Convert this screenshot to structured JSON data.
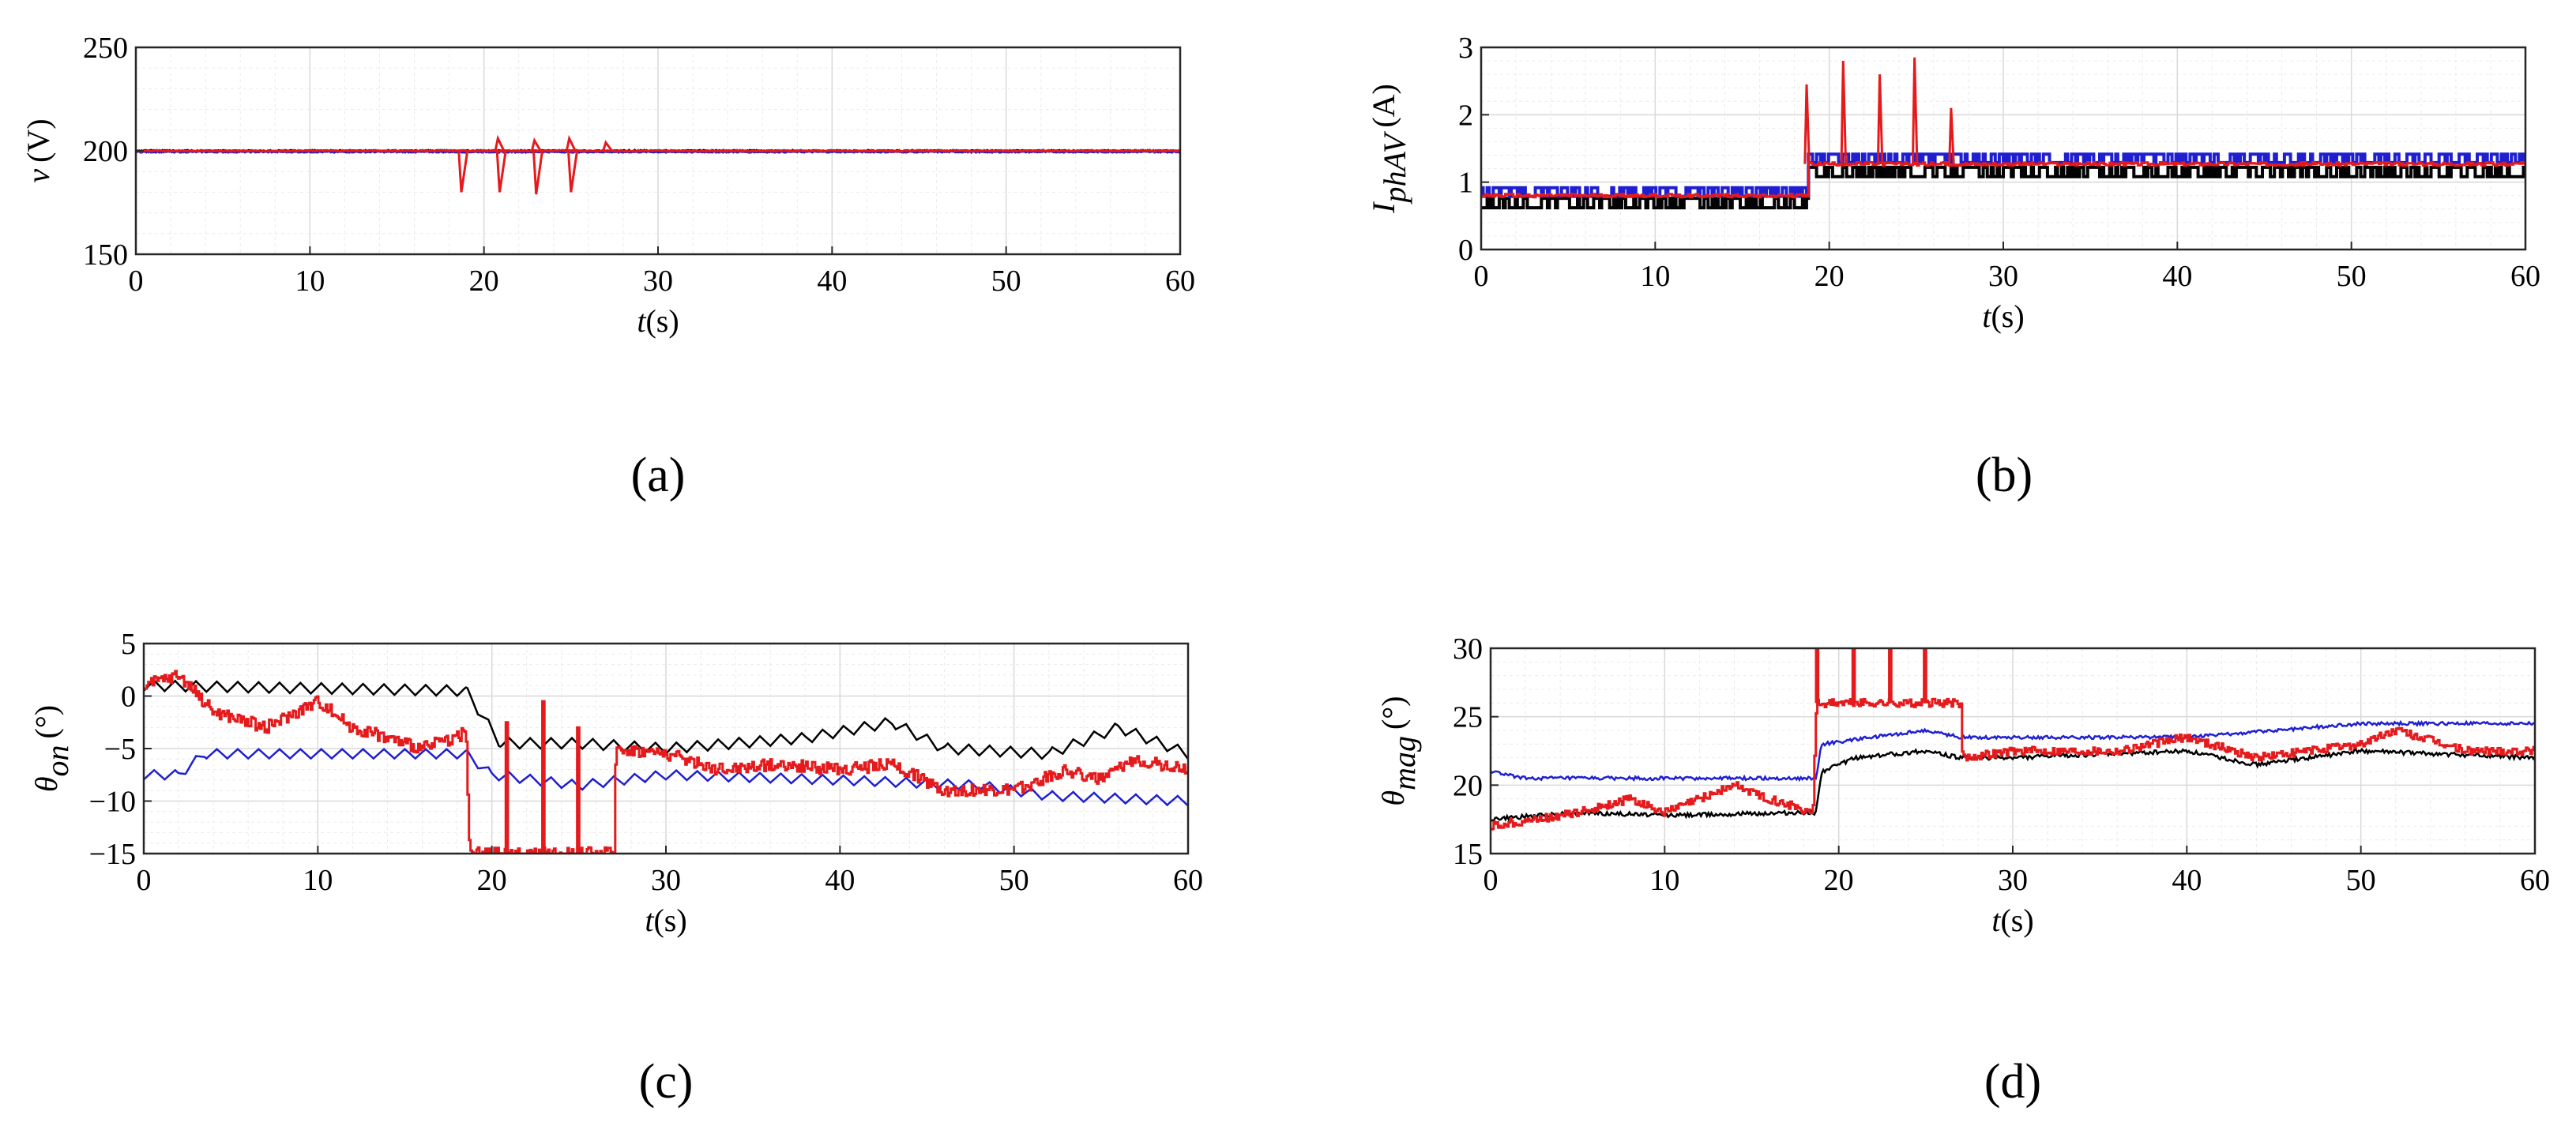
{
  "figure": {
    "panels": [
      "a",
      "b",
      "c",
      "d"
    ]
  },
  "colors": {
    "red": "#e41a1c",
    "blue": "#1f1fd1",
    "black": "#000000"
  },
  "chart_data": [
    {
      "id": "a",
      "type": "line",
      "panel_label": "(a)",
      "xlabel_italic": "t",
      "xlabel_unit": "(s)",
      "ylabel_italic": "v",
      "ylabel_sub": "",
      "ylabel_unit": "(V)",
      "xlim": [
        0,
        60
      ],
      "ylim": [
        150,
        250
      ],
      "xticks": [
        0,
        10,
        20,
        30,
        40,
        50,
        60
      ],
      "yticks": [
        150,
        200,
        250
      ],
      "grid": true,
      "series": [
        {
          "color": "black",
          "baseline": [
            [
              0,
              200
            ],
            [
              60,
              200
            ]
          ]
        },
        {
          "color": "blue",
          "baseline": [
            [
              0,
              199.5
            ],
            [
              60,
              199.5
            ]
          ]
        },
        {
          "color": "red",
          "baseline": [
            [
              0,
              200
            ],
            [
              60,
              200
            ]
          ],
          "events": [
            {
              "x": 18.7,
              "y": 180
            },
            {
              "x": 20.8,
              "y": 206
            },
            {
              "x": 20.9,
              "y": 180
            },
            {
              "x": 22.9,
              "y": 205
            },
            {
              "x": 23.0,
              "y": 179
            },
            {
              "x": 24.9,
              "y": 206
            },
            {
              "x": 25.0,
              "y": 180
            },
            {
              "x": 27.0,
              "y": 204
            }
          ]
        }
      ]
    },
    {
      "id": "b",
      "type": "line",
      "panel_label": "(b)",
      "xlabel_italic": "t",
      "xlabel_unit": "(s)",
      "ylabel_italic": "I",
      "ylabel_sub": "phAV",
      "ylabel_unit": "(A)",
      "xlim": [
        0,
        60
      ],
      "ylim": [
        0,
        3
      ],
      "xticks": [
        0,
        10,
        20,
        30,
        40,
        50,
        60
      ],
      "yticks": [
        0,
        1,
        2,
        3
      ],
      "grid": true,
      "series": [
        {
          "color": "black",
          "segments": [
            [
              0,
              18.7,
              0.72
            ],
            [
              18.7,
              60,
              1.18
            ]
          ],
          "jitter": 0.1
        },
        {
          "color": "blue",
          "segments": [
            [
              0,
              18.7,
              0.88
            ],
            [
              18.7,
              60,
              1.38
            ]
          ],
          "jitter": 0.09
        },
        {
          "color": "red",
          "segments": [
            [
              0,
              18.7,
              0.8
            ],
            [
              18.7,
              60,
              1.27
            ]
          ],
          "spikes": [
            {
              "x": 18.7,
              "y": 2.45
            },
            {
              "x": 20.8,
              "y": 2.8
            },
            {
              "x": 22.9,
              "y": 2.6
            },
            {
              "x": 24.9,
              "y": 2.85
            },
            {
              "x": 27.0,
              "y": 2.1
            }
          ]
        }
      ]
    },
    {
      "id": "c",
      "type": "line",
      "panel_label": "(c)",
      "xlabel_italic": "t",
      "xlabel_unit": "(s)",
      "ylabel_italic": "θ",
      "ylabel_sub": "on",
      "ylabel_unit": "(°)",
      "xlim": [
        0,
        60
      ],
      "ylim": [
        -15,
        5
      ],
      "xticks": [
        0,
        10,
        20,
        30,
        40,
        50,
        60
      ],
      "yticks": [
        -15,
        -10,
        -5,
        0,
        5
      ],
      "grid": true,
      "series": [
        {
          "color": "black",
          "points": [
            [
              0,
              1
            ],
            [
              18.5,
              0.5
            ],
            [
              20.5,
              -4.5
            ],
            [
              25,
              -4.5
            ],
            [
              30,
              -5
            ],
            [
              38,
              -4
            ],
            [
              43,
              -2.5
            ],
            [
              46,
              -5
            ],
            [
              52,
              -5.5
            ],
            [
              56,
              -3
            ],
            [
              60,
              -5.5
            ]
          ],
          "zigzag": 1.0
        },
        {
          "color": "blue",
          "points": [
            [
              0,
              -7.5
            ],
            [
              2,
              -7.5
            ],
            [
              3.5,
              -5.5
            ],
            [
              18.5,
              -5.5
            ],
            [
              20,
              -7.5
            ],
            [
              25,
              -8.5
            ],
            [
              30,
              -7.5
            ],
            [
              40,
              -8
            ],
            [
              48,
              -8.5
            ],
            [
              52,
              -9.5
            ],
            [
              60,
              -10
            ]
          ],
          "zigzag": 0.9
        },
        {
          "color": "red",
          "points": [
            [
              0,
              1
            ],
            [
              2,
              2
            ],
            [
              4,
              -1.5
            ],
            [
              7,
              -3
            ],
            [
              10,
              -0.5
            ],
            [
              12,
              -3
            ],
            [
              14,
              -4
            ],
            [
              16,
              -5
            ],
            [
              18.5,
              -3.5
            ],
            [
              18.7,
              -15
            ],
            [
              27,
              -15
            ],
            [
              27.1,
              -5
            ],
            [
              30,
              -5.5
            ],
            [
              33,
              -7
            ],
            [
              36,
              -6.5
            ],
            [
              40,
              -7
            ],
            [
              43,
              -6.5
            ],
            [
              46,
              -9
            ],
            [
              50,
              -9
            ],
            [
              53,
              -7
            ],
            [
              55,
              -8
            ],
            [
              57,
              -6
            ],
            [
              60,
              -7
            ]
          ],
          "spikes": [
            {
              "x": 20.8,
              "y": -2.5
            },
            {
              "x": 22.9,
              "y": -0.5
            },
            {
              "x": 24.9,
              "y": -3
            }
          ],
          "noise": 1.2
        }
      ]
    },
    {
      "id": "d",
      "type": "line",
      "panel_label": "(d)",
      "xlabel_italic": "t",
      "xlabel_unit": "(s)",
      "ylabel_italic": "θ",
      "ylabel_sub": "mag",
      "ylabel_unit": "(°)",
      "xlim": [
        0,
        60
      ],
      "ylim": [
        15,
        30
      ],
      "xticks": [
        0,
        10,
        20,
        30,
        40,
        50,
        60
      ],
      "yticks": [
        15,
        20,
        25,
        30
      ],
      "grid": true,
      "series": [
        {
          "color": "black",
          "points": [
            [
              0,
              17.5
            ],
            [
              5,
              18
            ],
            [
              10,
              17.8
            ],
            [
              18.7,
              18
            ],
            [
              19,
              21
            ],
            [
              21,
              22
            ],
            [
              25,
              22.5
            ],
            [
              27,
              22
            ],
            [
              30,
              22
            ],
            [
              40,
              22.5
            ],
            [
              44,
              21.5
            ],
            [
              50,
              22.5
            ],
            [
              60,
              22
            ]
          ],
          "noise": 0.3
        },
        {
          "color": "blue",
          "points": [
            [
              0,
              21
            ],
            [
              2,
              20.5
            ],
            [
              18.7,
              20.5
            ],
            [
              19,
              23
            ],
            [
              25,
              24
            ],
            [
              27,
              23.5
            ],
            [
              40,
              23.5
            ],
            [
              45,
              24
            ],
            [
              50,
              24.5
            ],
            [
              60,
              24.5
            ]
          ],
          "noise": 0.25
        },
        {
          "color": "red",
          "points": [
            [
              0,
              17
            ],
            [
              5,
              18
            ],
            [
              8,
              19
            ],
            [
              10,
              18
            ],
            [
              14,
              20
            ],
            [
              16,
              19
            ],
            [
              18.5,
              18
            ],
            [
              18.7,
              26
            ],
            [
              27,
              26
            ],
            [
              27.1,
              22
            ],
            [
              30,
              22.5
            ],
            [
              36,
              22.5
            ],
            [
              40,
              23.5
            ],
            [
              44,
              22
            ],
            [
              50,
              23
            ],
            [
              52,
              24
            ],
            [
              56,
              22.5
            ],
            [
              60,
              22.5
            ]
          ],
          "spikes": [
            {
              "x": 18.7,
              "y": 30
            },
            {
              "x": 20.8,
              "y": 30
            },
            {
              "x": 22.9,
              "y": 30
            },
            {
              "x": 24.9,
              "y": 30
            }
          ],
          "noise": 0.6
        }
      ]
    }
  ]
}
